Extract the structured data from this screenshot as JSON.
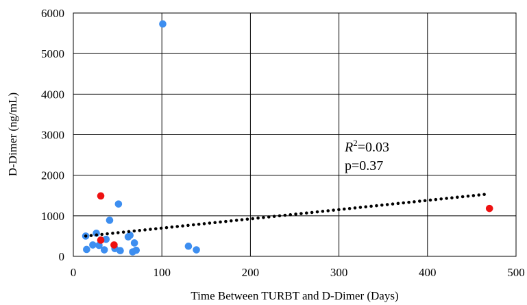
{
  "chart_data": {
    "type": "scatter",
    "xlabel": "Time Between TURBT and D-Dimer (Days)",
    "ylabel": "D-Dimer (ng/mL)",
    "xlim": [
      0,
      500
    ],
    "ylim": [
      0,
      6000
    ],
    "x_ticks": [
      "0",
      "100",
      "200",
      "300",
      "400",
      "500"
    ],
    "y_ticks": [
      "0",
      "1000",
      "2000",
      "3000",
      "4000",
      "5000",
      "6000"
    ],
    "grid": true,
    "colors": {
      "blue": "#3d8ef0",
      "red": "#ee1111",
      "trend": "#000000"
    },
    "series": [
      {
        "color": "#3d8ef0",
        "points": [
          [
            101,
            5730
          ],
          [
            51,
            1290
          ],
          [
            41,
            890
          ],
          [
            26,
            570
          ],
          [
            14,
            500
          ],
          [
            22,
            280
          ],
          [
            29,
            270
          ],
          [
            15,
            170
          ],
          [
            35,
            160
          ],
          [
            37,
            420
          ],
          [
            47,
            190
          ],
          [
            53,
            140
          ],
          [
            62,
            480
          ],
          [
            64,
            520
          ],
          [
            69,
            330
          ],
          [
            67,
            110
          ],
          [
            71,
            150
          ],
          [
            130,
            250
          ],
          [
            139,
            160
          ]
        ]
      },
      {
        "color": "#ee1111",
        "points": [
          [
            31,
            1490
          ],
          [
            31,
            400
          ],
          [
            46,
            280
          ],
          [
            470,
            1180
          ]
        ]
      }
    ],
    "trendline": {
      "style": "dotted",
      "x": [
        14,
        470
      ],
      "y": [
        500,
        1540
      ]
    },
    "annotation": {
      "r2_label": "R",
      "r2_sup": "2",
      "r2_value": "=0.03",
      "p_value": "p=0.37"
    }
  }
}
